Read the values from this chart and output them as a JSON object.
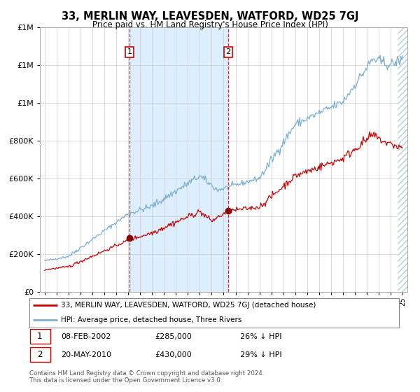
{
  "title": "33, MERLIN WAY, LEAVESDEN, WATFORD, WD25 7GJ",
  "subtitle": "Price paid vs. HM Land Registry's House Price Index (HPI)",
  "legend_line1": "33, MERLIN WAY, LEAVESDEN, WATFORD, WD25 7GJ (detached house)",
  "legend_line2": "HPI: Average price, detached house, Three Rivers",
  "sale1_date": "08-FEB-2002",
  "sale1_price": "£285,000",
  "sale1_pct": "26% ↓ HPI",
  "sale2_date": "20-MAY-2010",
  "sale2_price": "£430,000",
  "sale2_pct": "29% ↓ HPI",
  "footer": "Contains HM Land Registry data © Crown copyright and database right 2024.\nThis data is licensed under the Open Government Licence v3.0.",
  "hpi_color": "#7bafd4",
  "price_color": "#cc0000",
  "sale_marker_color": "#880000",
  "dashed_line_color": "#cc3333",
  "highlight_color": "#ddeeff",
  "ylim_max": 1400000,
  "yticks": [
    0,
    200000,
    400000,
    600000,
    800000,
    1000000,
    1200000,
    1400000
  ],
  "sale1_x": 2002.1,
  "sale1_y": 285000,
  "sale2_x": 2010.38,
  "sale2_y": 430000,
  "xmin": 1994.6,
  "xmax": 2025.4
}
